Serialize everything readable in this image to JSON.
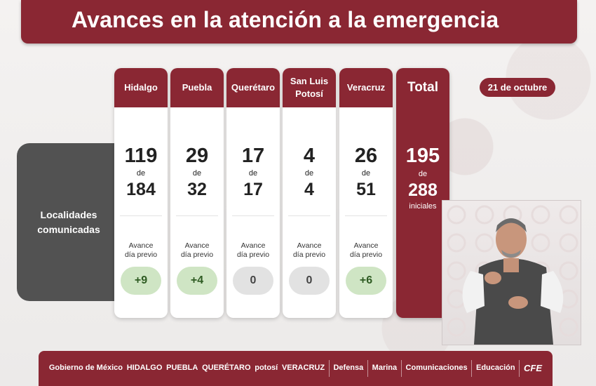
{
  "title": "Avances en la atención a la emergencia",
  "date": "21 de octubre",
  "row_label": "Localidades comunicadas",
  "de": "de",
  "avance_label_1": "Avance",
  "avance_label_2": "día previo",
  "states": [
    {
      "name": "Hidalgo",
      "done": "119",
      "total": "184",
      "change": "+9"
    },
    {
      "name": "Puebla",
      "done": "29",
      "total": "32",
      "change": "+4"
    },
    {
      "name": "Querétaro",
      "done": "17",
      "total": "17",
      "change": "0"
    },
    {
      "name": "San Luis Potosí",
      "done": "4",
      "total": "4",
      "change": "0"
    },
    {
      "name": "Veracruz",
      "done": "26",
      "total": "51",
      "change": "+6"
    }
  ],
  "total": {
    "label": "Total",
    "done": "195",
    "total": "288",
    "suffix": "iniciales"
  },
  "footer_logos": [
    {
      "text": "Gobierno de México",
      "icon": "eagle-seal-icon"
    },
    {
      "text": "HIDALGO",
      "icon": "hidalgo-seal-icon"
    },
    {
      "text": "PUEBLA",
      "icon": "puebla-seal-icon"
    },
    {
      "text": "QUERÉTARO",
      "icon": "queretaro-seal-icon"
    },
    {
      "text": "potosí",
      "icon": "potosi-seal-icon"
    },
    {
      "text": "VERACRUZ",
      "icon": "veracruz-seal-icon"
    },
    {
      "text": "Defensa",
      "icon": ""
    },
    {
      "text": "Marina",
      "icon": ""
    },
    {
      "text": "Comunicaciones",
      "icon": ""
    },
    {
      "text": "Educación",
      "icon": ""
    },
    {
      "text": "CFE",
      "icon": ""
    }
  ],
  "colors": {
    "brand": "#8a2733",
    "positive_bg": "#cfe5c4",
    "neutral_bg": "#e2e2e2",
    "label_bg": "#525252"
  }
}
